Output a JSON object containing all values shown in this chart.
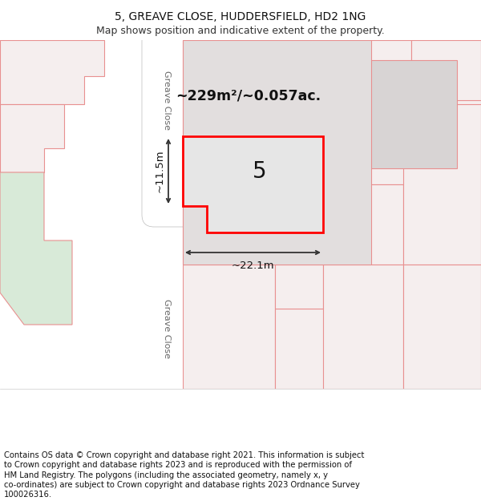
{
  "title_line1": "5, GREAVE CLOSE, HUDDERSFIELD, HD2 1NG",
  "title_line2": "Map shows position and indicative extent of the property.",
  "area_text": "~229m²/~0.057ac.",
  "width_text": "~22.1m",
  "height_text": "~11.5m",
  "property_number": "5",
  "road_label_top": "Greave Close",
  "road_label_bottom": "Greave Close",
  "footer_lines": [
    "Contains OS data © Crown copyright and database right 2021. This information is subject",
    "to Crown copyright and database rights 2023 and is reproduced with the permission of",
    "HM Land Registry. The polygons (including the associated geometry, namely x, y",
    "co-ordinates) are subject to Crown copyright and database rights 2023 Ordnance Survey",
    "100026316."
  ],
  "bg_color": "#ffffff",
  "map_bg": "#faf5f5",
  "property_fill": "#e6e6e6",
  "property_edge": "#ff0000",
  "pink_edge": "#e89090",
  "pink_fill": "#f5eeee",
  "road_fill": "#ffffff",
  "green_fill": "#d8ead8",
  "grey_fill": "#d8d4d4",
  "title_fontsize": 10,
  "subtitle_fontsize": 9,
  "footer_fontsize": 7.2,
  "road_label_fontsize": 8
}
